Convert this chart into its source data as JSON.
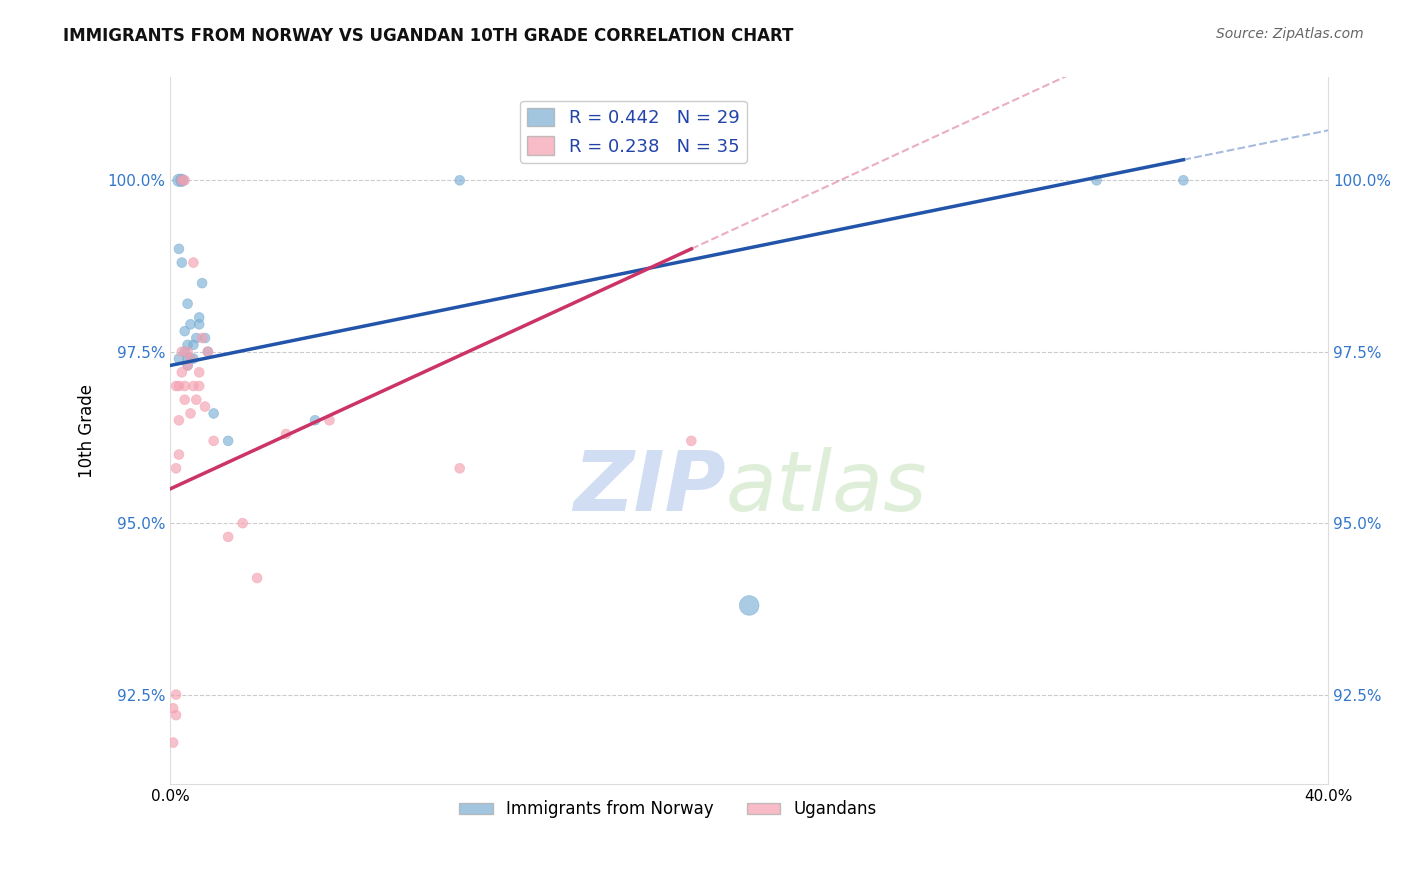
{
  "title": "IMMIGRANTS FROM NORWAY VS UGANDAN 10TH GRADE CORRELATION CHART",
  "source": "Source: ZipAtlas.com",
  "ylabel": "10th Grade",
  "xlim": [
    0.0,
    0.4
  ],
  "ylim": [
    91.2,
    101.5
  ],
  "yticks": [
    92.5,
    95.0,
    97.5,
    100.0
  ],
  "ytick_labels": [
    "92.5%",
    "95.0%",
    "97.5%",
    "100.0%"
  ],
  "xticks": [
    0.0,
    0.05,
    0.1,
    0.15,
    0.2,
    0.25,
    0.3,
    0.35,
    0.4
  ],
  "xtick_labels": [
    "0.0%",
    "",
    "",
    "",
    "",
    "",
    "",
    "",
    "40.0%"
  ],
  "blue_color": "#7BAFD4",
  "pink_color": "#F4A0B0",
  "blue_line_color": "#2255AA",
  "pink_line_color": "#CC3366",
  "legend_R_blue": "R = 0.442",
  "legend_N_blue": "N = 29",
  "legend_R_pink": "R = 0.238",
  "legend_N_pink": "N = 35",
  "watermark_zip": "ZIP",
  "watermark_atlas": "atlas",
  "legend_label_blue": "Immigrants from Norway",
  "legend_label_pink": "Ugandans",
  "blue_x": [
    0.003,
    0.004,
    0.004,
    0.005,
    0.005,
    0.006,
    0.006,
    0.007,
    0.008,
    0.009,
    0.01,
    0.011,
    0.012,
    0.013,
    0.003,
    0.004,
    0.006,
    0.007,
    0.008,
    0.01,
    0.015,
    0.02,
    0.05,
    0.1,
    0.2,
    0.32,
    0.35,
    0.003,
    0.006
  ],
  "blue_y": [
    100.0,
    100.0,
    100.0,
    97.5,
    97.8,
    97.6,
    98.2,
    97.9,
    97.6,
    97.7,
    97.9,
    98.5,
    97.7,
    97.5,
    99.0,
    98.8,
    97.4,
    97.4,
    97.4,
    98.0,
    96.6,
    96.2,
    96.5,
    100.0,
    93.8,
    100.0,
    100.0,
    97.4,
    97.3
  ],
  "blue_size": [
    80,
    80,
    60,
    50,
    50,
    50,
    50,
    50,
    50,
    50,
    50,
    50,
    50,
    50,
    50,
    50,
    50,
    50,
    50,
    50,
    50,
    50,
    50,
    50,
    200,
    50,
    50,
    50,
    50
  ],
  "pink_x": [
    0.001,
    0.002,
    0.002,
    0.003,
    0.003,
    0.004,
    0.004,
    0.005,
    0.005,
    0.006,
    0.006,
    0.007,
    0.007,
    0.008,
    0.009,
    0.01,
    0.01,
    0.011,
    0.012,
    0.013,
    0.015,
    0.02,
    0.025,
    0.03,
    0.04,
    0.055,
    0.1,
    0.18,
    0.002,
    0.003,
    0.004,
    0.005,
    0.008,
    0.001,
    0.002
  ],
  "pink_y": [
    92.3,
    92.5,
    97.0,
    96.5,
    97.0,
    97.2,
    97.5,
    96.8,
    97.0,
    97.5,
    97.3,
    97.4,
    96.6,
    97.0,
    96.8,
    97.0,
    97.2,
    97.7,
    96.7,
    97.5,
    96.2,
    94.8,
    95.0,
    94.2,
    96.3,
    96.5,
    95.8,
    96.2,
    95.8,
    96.0,
    100.0,
    100.0,
    98.8,
    91.8,
    92.2
  ],
  "pink_size": [
    50,
    50,
    50,
    50,
    50,
    50,
    50,
    50,
    50,
    50,
    50,
    50,
    50,
    50,
    50,
    50,
    50,
    50,
    50,
    50,
    50,
    50,
    50,
    50,
    50,
    50,
    50,
    50,
    50,
    50,
    50,
    50,
    50,
    50,
    50
  ],
  "blue_line_x0": 0.0,
  "blue_line_y0": 97.3,
  "blue_line_x1": 0.35,
  "blue_line_y1": 100.3,
  "pink_line_x0": 0.0,
  "pink_line_y0": 95.5,
  "pink_line_x1": 0.18,
  "pink_line_y1": 99.0
}
